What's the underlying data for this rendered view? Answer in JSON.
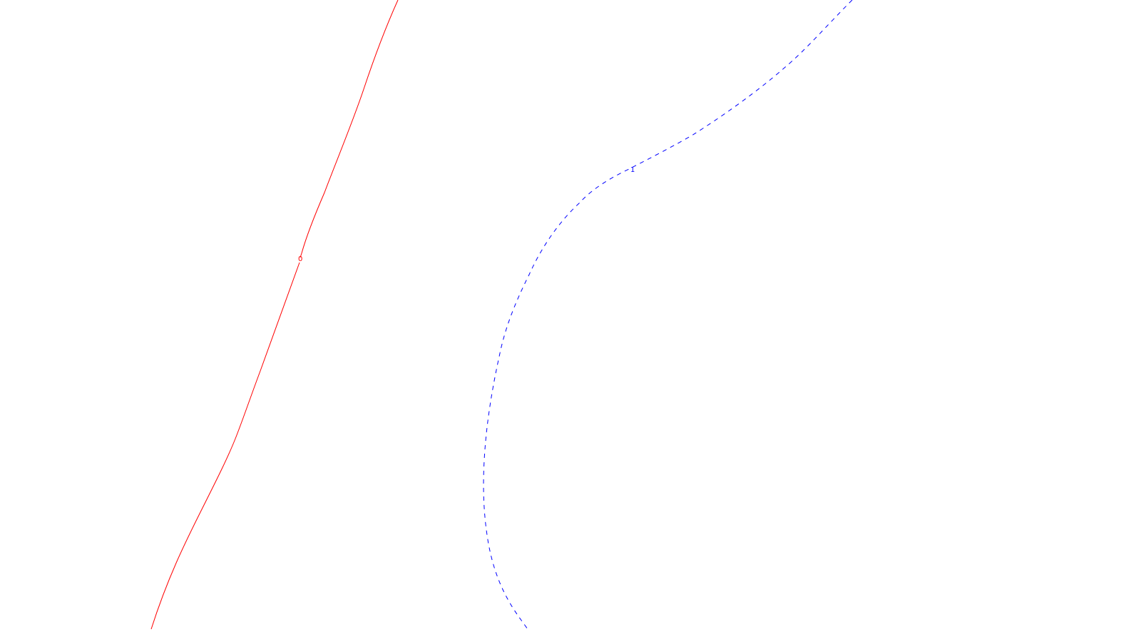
{
  "background": "#ffffff",
  "contours": [
    {
      "label": "0",
      "color": "#ff0000",
      "line_style": "solid"
    },
    {
      "label": "1",
      "color": "#0000ff",
      "line_style": "dashed"
    }
  ]
}
